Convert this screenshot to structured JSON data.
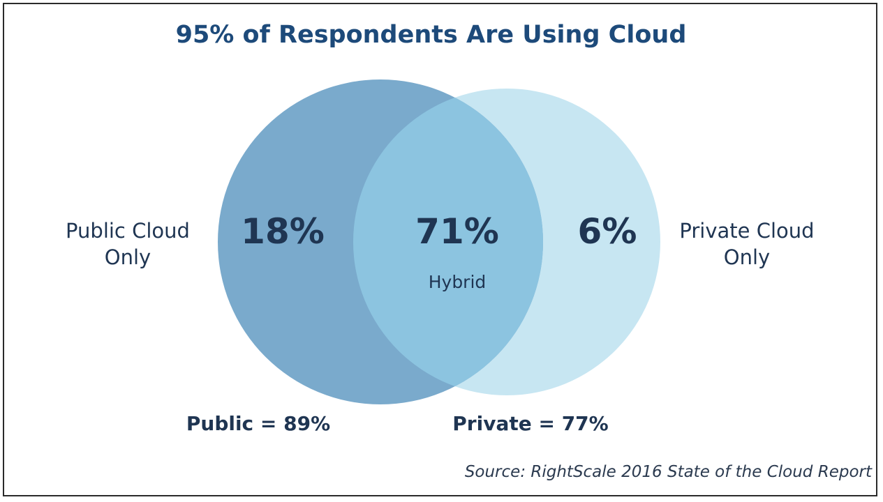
{
  "title": "95% of Respondents Are Using Cloud",
  "diagram": {
    "left_set": {
      "label_line1": "Public Cloud",
      "label_line2": "Only",
      "only_value": "18%",
      "total": "Public = 89%",
      "color": "#7aaacc"
    },
    "right_set": {
      "label_line1": "Private Cloud",
      "label_line2": "Only",
      "only_value": "6%",
      "total": "Private = 77%",
      "color": "#c7e6f2"
    },
    "overlap": {
      "value": "71%",
      "label": "Hybrid",
      "color": "#8cc4e0"
    }
  },
  "source": "Source: RightScale 2016 State of the Cloud Report"
}
